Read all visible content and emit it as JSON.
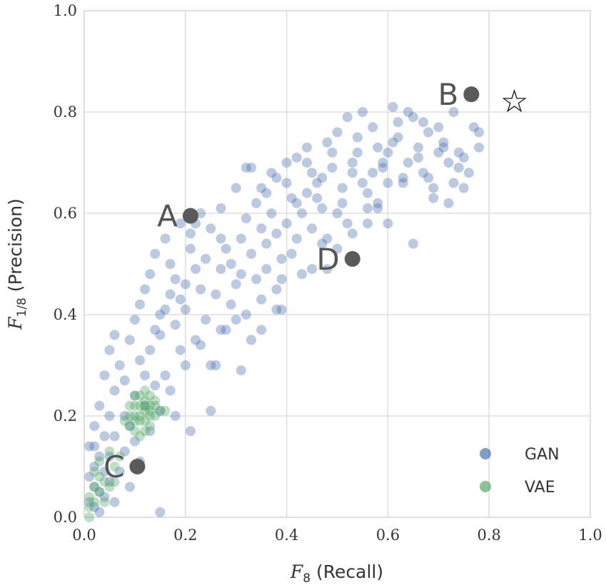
{
  "chart_data": {
    "type": "scatter",
    "xlabel": "(Recall)",
    "xlabel_symbol": "F",
    "xlabel_sub": "8",
    "ylabel": "(Precision)",
    "ylabel_symbol": "F",
    "ylabel_sub": "1/8",
    "xlim": [
      0.0,
      1.0
    ],
    "ylim": [
      0.0,
      1.0
    ],
    "xticks": [
      "0.0",
      "0.2",
      "0.4",
      "0.6",
      "0.8",
      "1.0"
    ],
    "yticks": [
      "0.0",
      "0.2",
      "0.4",
      "0.6",
      "0.8",
      "1.0"
    ],
    "grid": true,
    "legend_position": "bottom-right",
    "colors": {
      "GAN": "#4c72b0",
      "VAE": "#55a868",
      "annotation": "#5a5a5a"
    },
    "series": [
      {
        "name": "GAN",
        "points": [
          [
            0.02,
            0.02
          ],
          [
            0.03,
            0.05
          ],
          [
            0.01,
            0.08
          ],
          [
            0.04,
            0.04
          ],
          [
            0.02,
            0.1
          ],
          [
            0.05,
            0.07
          ],
          [
            0.03,
            0.12
          ],
          [
            0.06,
            0.03
          ],
          [
            0.01,
            0.14
          ],
          [
            0.04,
            0.16
          ],
          [
            0.07,
            0.09
          ],
          [
            0.02,
            0.18
          ],
          [
            0.05,
            0.2
          ],
          [
            0.08,
            0.13
          ],
          [
            0.03,
            0.22
          ],
          [
            0.06,
            0.25
          ],
          [
            0.09,
            0.18
          ],
          [
            0.04,
            0.28
          ],
          [
            0.07,
            0.3
          ],
          [
            0.1,
            0.24
          ],
          [
            0.05,
            0.33
          ],
          [
            0.08,
            0.27
          ],
          [
            0.11,
            0.31
          ],
          [
            0.06,
            0.36
          ],
          [
            0.09,
            0.35
          ],
          [
            0.12,
            0.28
          ],
          [
            0.1,
            0.39
          ],
          [
            0.13,
            0.33
          ],
          [
            0.11,
            0.42
          ],
          [
            0.14,
            0.37
          ],
          [
            0.12,
            0.45
          ],
          [
            0.15,
            0.36
          ],
          [
            0.13,
            0.48
          ],
          [
            0.16,
            0.41
          ],
          [
            0.14,
            0.52
          ],
          [
            0.17,
            0.44
          ],
          [
            0.15,
            0.4
          ],
          [
            0.18,
            0.47
          ],
          [
            0.16,
            0.55
          ],
          [
            0.19,
            0.43
          ],
          [
            0.17,
            0.5
          ],
          [
            0.2,
            0.46
          ],
          [
            0.18,
            0.38
          ],
          [
            0.21,
            0.53
          ],
          [
            0.19,
            0.58
          ],
          [
            0.22,
            0.49
          ],
          [
            0.2,
            0.41
          ],
          [
            0.23,
            0.45
          ],
          [
            0.21,
            0.56
          ],
          [
            0.24,
            0.51
          ],
          [
            0.22,
            0.35
          ],
          [
            0.25,
            0.3
          ],
          [
            0.23,
            0.6
          ],
          [
            0.26,
            0.44
          ],
          [
            0.24,
            0.39
          ],
          [
            0.27,
            0.49
          ],
          [
            0.25,
            0.57
          ],
          [
            0.28,
            0.53
          ],
          [
            0.26,
            0.3
          ],
          [
            0.29,
            0.42
          ],
          [
            0.27,
            0.61
          ],
          [
            0.3,
            0.46
          ],
          [
            0.28,
            0.37
          ],
          [
            0.31,
            0.55
          ],
          [
            0.29,
            0.5
          ],
          [
            0.32,
            0.59
          ],
          [
            0.3,
            0.65
          ],
          [
            0.33,
            0.52
          ],
          [
            0.31,
            0.48
          ],
          [
            0.34,
            0.62
          ],
          [
            0.32,
            0.4
          ],
          [
            0.35,
            0.57
          ],
          [
            0.33,
            0.69
          ],
          [
            0.36,
            0.54
          ],
          [
            0.34,
            0.47
          ],
          [
            0.37,
            0.6
          ],
          [
            0.35,
            0.43
          ],
          [
            0.38,
            0.56
          ],
          [
            0.36,
            0.64
          ],
          [
            0.39,
            0.51
          ],
          [
            0.37,
            0.68
          ],
          [
            0.4,
            0.58
          ],
          [
            0.38,
            0.45
          ],
          [
            0.41,
            0.63
          ],
          [
            0.39,
            0.41
          ],
          [
            0.42,
            0.55
          ],
          [
            0.4,
            0.66
          ],
          [
            0.43,
            0.6
          ],
          [
            0.41,
            0.52
          ],
          [
            0.44,
            0.7
          ],
          [
            0.42,
            0.62
          ],
          [
            0.45,
            0.57
          ],
          [
            0.43,
            0.48
          ],
          [
            0.46,
            0.66
          ],
          [
            0.44,
            0.73
          ],
          [
            0.47,
            0.61
          ],
          [
            0.45,
            0.68
          ],
          [
            0.48,
            0.55
          ],
          [
            0.46,
            0.63
          ],
          [
            0.49,
            0.72
          ],
          [
            0.47,
            0.67
          ],
          [
            0.5,
            0.6
          ],
          [
            0.48,
            0.74
          ],
          [
            0.51,
            0.65
          ],
          [
            0.49,
            0.69
          ],
          [
            0.52,
            0.58
          ],
          [
            0.5,
            0.76
          ],
          [
            0.53,
            0.68
          ],
          [
            0.51,
            0.62
          ],
          [
            0.54,
            0.72
          ],
          [
            0.52,
            0.79
          ],
          [
            0.55,
            0.66
          ],
          [
            0.53,
            0.7
          ],
          [
            0.56,
            0.61
          ],
          [
            0.54,
            0.75
          ],
          [
            0.57,
            0.68
          ],
          [
            0.55,
            0.8
          ],
          [
            0.58,
            0.73
          ],
          [
            0.56,
            0.64
          ],
          [
            0.59,
            0.7
          ],
          [
            0.57,
            0.77
          ],
          [
            0.6,
            0.66
          ],
          [
            0.58,
            0.62
          ],
          [
            0.61,
            0.74
          ],
          [
            0.59,
            0.69
          ],
          [
            0.62,
            0.78
          ],
          [
            0.6,
            0.72
          ],
          [
            0.63,
            0.67
          ],
          [
            0.61,
            0.81
          ],
          [
            0.64,
            0.7
          ],
          [
            0.62,
            0.75
          ],
          [
            0.65,
            0.79
          ],
          [
            0.63,
            0.66
          ],
          [
            0.66,
            0.73
          ],
          [
            0.64,
            0.8
          ],
          [
            0.67,
            0.68
          ],
          [
            0.65,
            0.54
          ],
          [
            0.68,
            0.76
          ],
          [
            0.66,
            0.71
          ],
          [
            0.69,
            0.65
          ],
          [
            0.67,
            0.78
          ],
          [
            0.7,
            0.72
          ],
          [
            0.68,
            0.67
          ],
          [
            0.71,
            0.74
          ],
          [
            0.69,
            0.63
          ],
          [
            0.72,
            0.7
          ],
          [
            0.7,
            0.77
          ],
          [
            0.73,
            0.66
          ],
          [
            0.71,
            0.73
          ],
          [
            0.74,
            0.69
          ],
          [
            0.72,
            0.62
          ],
          [
            0.75,
            0.71
          ],
          [
            0.73,
            0.8
          ],
          [
            0.76,
            0.68
          ],
          [
            0.74,
            0.72
          ],
          [
            0.77,
            0.77
          ],
          [
            0.75,
            0.65
          ],
          [
            0.78,
            0.73
          ],
          [
            0.76,
            0.83
          ],
          [
            0.78,
            0.76
          ],
          [
            0.02,
            0.06
          ],
          [
            0.04,
            0.09
          ],
          [
            0.01,
            0.03
          ],
          [
            0.03,
            0.01
          ],
          [
            0.05,
            0.12
          ],
          [
            0.02,
            0.14
          ],
          [
            0.06,
            0.16
          ],
          [
            0.08,
            0.2
          ],
          [
            0.1,
            0.15
          ],
          [
            0.12,
            0.22
          ],
          [
            0.14,
            0.26
          ],
          [
            0.15,
            0.21
          ],
          [
            0.13,
            0.17
          ],
          [
            0.11,
            0.11
          ],
          [
            0.09,
            0.06
          ],
          [
            0.15,
            0.01
          ],
          [
            0.18,
            0.2
          ],
          [
            0.21,
            0.17
          ],
          [
            0.25,
            0.21
          ],
          [
            0.17,
            0.25
          ],
          [
            0.2,
            0.3
          ],
          [
            0.23,
            0.34
          ],
          [
            0.19,
            0.33
          ],
          [
            0.16,
            0.28
          ],
          [
            0.31,
            0.29
          ],
          [
            0.35,
            0.37
          ],
          [
            0.38,
            0.41
          ],
          [
            0.33,
            0.35
          ],
          [
            0.3,
            0.39
          ],
          [
            0.27,
            0.37
          ],
          [
            0.36,
            0.49
          ],
          [
            0.39,
            0.47
          ],
          [
            0.45,
            0.49
          ],
          [
            0.48,
            0.49
          ],
          [
            0.47,
            0.54
          ],
          [
            0.5,
            0.53
          ],
          [
            0.53,
            0.56
          ],
          [
            0.56,
            0.58
          ],
          [
            0.58,
            0.61
          ],
          [
            0.6,
            0.58
          ],
          [
            0.32,
            0.69
          ],
          [
            0.35,
            0.65
          ],
          [
            0.4,
            0.7
          ],
          [
            0.44,
            0.64
          ],
          [
            0.42,
            0.71
          ],
          [
            0.38,
            0.67
          ],
          [
            0.27,
            0.55
          ],
          [
            0.22,
            0.58
          ]
        ]
      },
      {
        "name": "VAE",
        "points": [
          [
            0.09,
            0.18
          ],
          [
            0.1,
            0.2
          ],
          [
            0.11,
            0.22
          ],
          [
            0.12,
            0.19
          ],
          [
            0.13,
            0.21
          ],
          [
            0.12,
            0.23
          ],
          [
            0.1,
            0.17
          ],
          [
            0.14,
            0.22
          ],
          [
            0.11,
            0.19
          ],
          [
            0.13,
            0.24
          ],
          [
            0.09,
            0.2
          ],
          [
            0.12,
            0.21
          ],
          [
            0.14,
            0.2
          ],
          [
            0.1,
            0.22
          ],
          [
            0.13,
            0.18
          ],
          [
            0.11,
            0.24
          ],
          [
            0.08,
            0.19
          ],
          [
            0.15,
            0.21
          ],
          [
            0.12,
            0.17
          ],
          [
            0.1,
            0.24
          ],
          [
            0.14,
            0.23
          ],
          [
            0.11,
            0.2
          ],
          [
            0.13,
            0.22
          ],
          [
            0.09,
            0.22
          ],
          [
            0.12,
            0.25
          ],
          [
            0.1,
            0.19
          ],
          [
            0.16,
            0.21
          ],
          [
            0.11,
            0.16
          ],
          [
            0.13,
            0.2
          ],
          [
            0.12,
            0.22
          ],
          [
            0.02,
            0.03
          ],
          [
            0.03,
            0.05
          ],
          [
            0.01,
            0.02
          ],
          [
            0.04,
            0.07
          ],
          [
            0.02,
            0.09
          ],
          [
            0.05,
            0.06
          ],
          [
            0.03,
            0.11
          ],
          [
            0.06,
            0.1
          ],
          [
            0.01,
            0.04
          ],
          [
            0.04,
            0.03
          ],
          [
            0.05,
            0.13
          ],
          [
            0.02,
            0.06
          ],
          [
            0.03,
            0.08
          ],
          [
            0.06,
            0.07
          ],
          [
            0.07,
            0.12
          ],
          [
            0.01,
            0.0
          ]
        ]
      }
    ],
    "annotations": [
      {
        "label": "A",
        "x": 0.21,
        "y": 0.595
      },
      {
        "label": "B",
        "x": 0.765,
        "y": 0.835
      },
      {
        "label": "C",
        "x": 0.105,
        "y": 0.1
      },
      {
        "label": "D",
        "x": 0.53,
        "y": 0.51
      }
    ],
    "star": {
      "x": 0.85,
      "y": 0.82,
      "symbol": "☆"
    }
  }
}
